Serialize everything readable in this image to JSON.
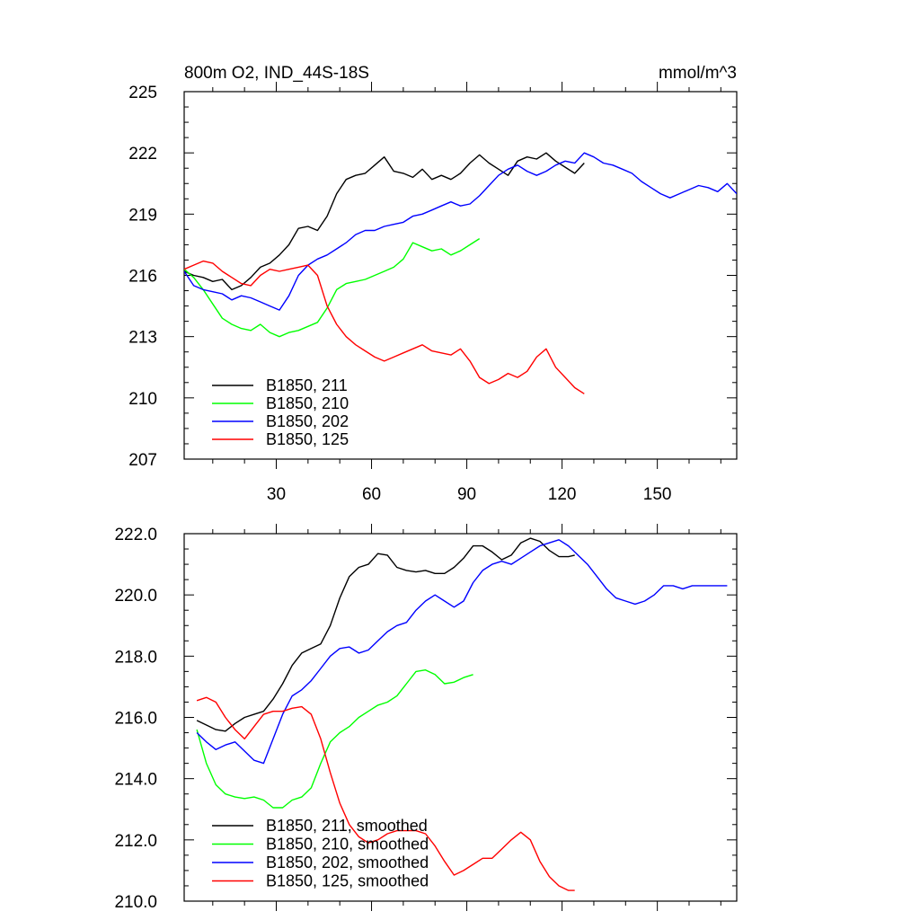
{
  "chart_data": [
    {
      "type": "line",
      "title_left": "800m O2, IND_44S-18S",
      "title_right": "mmol/m^3",
      "xlim": [
        1,
        175
      ],
      "ylim": [
        207,
        225
      ],
      "x_ticks": [
        30,
        60,
        90,
        120,
        150
      ],
      "y_ticks": [
        207,
        210,
        213,
        216,
        219,
        222,
        225
      ],
      "y_tick_labels": [
        "207",
        "210",
        "213",
        "216",
        "219",
        "222",
        "225"
      ],
      "legend": "bottom-left",
      "series": [
        {
          "name": "B1850, 211",
          "color": "#000000",
          "x": [
            1,
            4,
            7,
            10,
            13,
            16,
            19,
            22,
            25,
            28,
            31,
            34,
            37,
            40,
            43,
            46,
            49,
            52,
            55,
            58,
            61,
            64,
            67,
            70,
            73,
            76,
            79,
            82,
            85,
            88,
            91,
            94,
            97,
            100,
            103,
            106,
            109,
            112,
            115,
            118,
            121,
            124,
            127
          ],
          "y": [
            216.2,
            216.0,
            215.9,
            215.7,
            215.8,
            215.3,
            215.5,
            215.9,
            216.4,
            216.6,
            217.0,
            217.5,
            218.3,
            218.4,
            218.2,
            218.9,
            220.0,
            220.7,
            220.9,
            221.0,
            221.4,
            221.8,
            221.1,
            221.0,
            220.8,
            221.2,
            220.7,
            220.9,
            220.7,
            221.0,
            221.5,
            221.9,
            221.5,
            221.2,
            220.9,
            221.6,
            221.8,
            221.7,
            222.0,
            221.6,
            221.3,
            221.0,
            221.5
          ]
        },
        {
          "name": "B1850, 210",
          "color": "#00ff00",
          "x": [
            1,
            4,
            7,
            10,
            13,
            16,
            19,
            22,
            25,
            28,
            31,
            34,
            37,
            40,
            43,
            46,
            49,
            52,
            55,
            58,
            61,
            64,
            67,
            70,
            73,
            76,
            79,
            82,
            85,
            88,
            91,
            94
          ],
          "y": [
            216.3,
            215.9,
            215.3,
            214.6,
            213.9,
            213.6,
            213.4,
            213.3,
            213.6,
            213.2,
            213.0,
            213.2,
            213.3,
            213.5,
            213.7,
            214.4,
            215.3,
            215.6,
            215.7,
            215.8,
            216.0,
            216.2,
            216.4,
            216.8,
            217.6,
            217.4,
            217.2,
            217.3,
            217.0,
            217.2,
            217.5,
            217.8
          ]
        },
        {
          "name": "B1850, 202",
          "color": "#0000ff",
          "x": [
            1,
            4,
            7,
            10,
            13,
            16,
            19,
            22,
            25,
            28,
            31,
            34,
            37,
            40,
            43,
            46,
            49,
            52,
            55,
            58,
            61,
            64,
            67,
            70,
            73,
            76,
            79,
            82,
            85,
            88,
            91,
            94,
            97,
            100,
            103,
            106,
            109,
            112,
            115,
            118,
            121,
            124,
            127,
            130,
            133,
            136,
            139,
            142,
            145,
            148,
            151,
            154,
            157,
            160,
            163,
            166,
            169,
            172,
            175
          ],
          "y": [
            216.2,
            215.5,
            215.3,
            215.2,
            215.1,
            214.8,
            215.0,
            214.9,
            214.7,
            214.5,
            214.3,
            215.0,
            216.0,
            216.5,
            216.8,
            217.0,
            217.3,
            217.6,
            218.0,
            218.2,
            218.2,
            218.4,
            218.5,
            218.6,
            218.9,
            219.0,
            219.2,
            219.4,
            219.6,
            219.4,
            219.5,
            219.9,
            220.4,
            220.9,
            221.2,
            221.4,
            221.1,
            220.9,
            221.1,
            221.4,
            221.6,
            221.5,
            222.0,
            221.8,
            221.5,
            221.4,
            221.2,
            221.0,
            220.6,
            220.3,
            220.0,
            219.8,
            220.0,
            220.2,
            220.4,
            220.3,
            220.1,
            220.5,
            220.0
          ]
        },
        {
          "name": "B1850, 125",
          "color": "#ff0000",
          "x": [
            1,
            4,
            7,
            10,
            13,
            16,
            19,
            22,
            25,
            28,
            31,
            34,
            37,
            40,
            43,
            46,
            49,
            52,
            55,
            58,
            61,
            64,
            67,
            70,
            73,
            76,
            79,
            82,
            85,
            88,
            91,
            94,
            97,
            100,
            103,
            106,
            109,
            112,
            115,
            118,
            121,
            124,
            127
          ],
          "y": [
            216.3,
            216.5,
            216.7,
            216.6,
            216.2,
            215.9,
            215.6,
            215.5,
            216.0,
            216.3,
            216.2,
            216.3,
            216.4,
            216.5,
            216.0,
            214.5,
            213.6,
            213.0,
            212.6,
            212.3,
            212.0,
            211.8,
            212.0,
            212.2,
            212.4,
            212.6,
            212.3,
            212.2,
            212.1,
            212.4,
            211.8,
            211.0,
            210.7,
            210.9,
            211.2,
            211.0,
            211.3,
            212.0,
            212.4,
            211.5,
            211.0,
            210.5,
            210.2
          ]
        }
      ]
    },
    {
      "type": "line",
      "xlim": [
        1,
        175
      ],
      "ylim": [
        210,
        222
      ],
      "x_ticks": [
        30,
        60,
        90,
        120,
        150
      ],
      "y_ticks": [
        210,
        212,
        214,
        216,
        218,
        220,
        222
      ],
      "y_tick_labels": [
        "210.0",
        "212.0",
        "214.0",
        "216.0",
        "218.0",
        "220.0",
        "222.0"
      ],
      "legend": "bottom-left",
      "series": [
        {
          "name": "B1850, 211, smoothed",
          "color": "#000000",
          "x": [
            5,
            8,
            11,
            14,
            17,
            20,
            23,
            26,
            29,
            32,
            35,
            38,
            41,
            44,
            47,
            50,
            53,
            56,
            59,
            62,
            65,
            68,
            71,
            74,
            77,
            80,
            83,
            86,
            89,
            92,
            95,
            98,
            101,
            104,
            107,
            110,
            113,
            116,
            119,
            122,
            124
          ],
          "y": [
            215.9,
            215.75,
            215.6,
            215.55,
            215.8,
            216.0,
            216.1,
            216.2,
            216.6,
            217.1,
            217.7,
            218.1,
            218.25,
            218.4,
            219.0,
            219.9,
            220.6,
            220.9,
            221.0,
            221.35,
            221.3,
            220.9,
            220.8,
            220.75,
            220.8,
            220.7,
            220.7,
            220.9,
            221.2,
            221.6,
            221.6,
            221.4,
            221.15,
            221.3,
            221.7,
            221.85,
            221.75,
            221.45,
            221.25,
            221.25,
            221.3
          ]
        },
        {
          "name": "B1850, 210, smoothed",
          "color": "#00ff00",
          "x": [
            5,
            8,
            11,
            14,
            17,
            20,
            23,
            26,
            29,
            32,
            35,
            38,
            41,
            44,
            47,
            50,
            53,
            56,
            59,
            62,
            65,
            68,
            71,
            74,
            77,
            80,
            83,
            86,
            89,
            92
          ],
          "y": [
            215.6,
            214.5,
            213.8,
            213.5,
            213.4,
            213.35,
            213.4,
            213.3,
            213.05,
            213.05,
            213.3,
            213.4,
            213.7,
            214.5,
            215.2,
            215.5,
            215.7,
            216.0,
            216.2,
            216.4,
            216.5,
            216.7,
            217.1,
            217.5,
            217.55,
            217.4,
            217.1,
            217.15,
            217.3,
            217.4
          ]
        },
        {
          "name": "B1850, 202, smoothed",
          "color": "#0000ff",
          "x": [
            5,
            8,
            11,
            14,
            17,
            20,
            23,
            26,
            29,
            32,
            35,
            38,
            41,
            44,
            47,
            50,
            53,
            56,
            59,
            62,
            65,
            68,
            71,
            74,
            77,
            80,
            83,
            86,
            89,
            92,
            95,
            98,
            101,
            104,
            107,
            110,
            113,
            116,
            119,
            122,
            125,
            128,
            131,
            134,
            137,
            140,
            143,
            146,
            149,
            152,
            155,
            158,
            161,
            164,
            167,
            170,
            172
          ],
          "y": [
            215.5,
            215.2,
            214.95,
            215.1,
            215.2,
            214.9,
            214.6,
            214.5,
            215.3,
            216.1,
            216.7,
            216.9,
            217.2,
            217.6,
            218.0,
            218.25,
            218.3,
            218.1,
            218.2,
            218.5,
            218.8,
            219.0,
            219.1,
            219.5,
            219.8,
            220.0,
            219.8,
            219.6,
            219.8,
            220.4,
            220.8,
            221.0,
            221.1,
            221.0,
            221.2,
            221.4,
            221.6,
            221.7,
            221.8,
            221.6,
            221.3,
            221.0,
            220.6,
            220.2,
            219.9,
            219.8,
            219.7,
            219.8,
            220.0,
            220.3,
            220.3,
            220.2,
            220.3,
            220.3,
            220.3,
            220.3,
            220.3
          ]
        },
        {
          "name": "B1850, 125, smoothed",
          "color": "#ff0000",
          "x": [
            5,
            8,
            11,
            14,
            17,
            20,
            23,
            26,
            29,
            32,
            35,
            38,
            41,
            44,
            47,
            50,
            53,
            56,
            59,
            62,
            65,
            68,
            71,
            74,
            77,
            80,
            83,
            86,
            89,
            92,
            95,
            98,
            101,
            104,
            107,
            110,
            113,
            116,
            119,
            122,
            124
          ],
          "y": [
            216.55,
            216.65,
            216.5,
            216.0,
            215.6,
            215.3,
            215.7,
            216.1,
            216.2,
            216.2,
            216.3,
            216.35,
            216.1,
            215.3,
            214.2,
            213.2,
            212.5,
            212.1,
            211.9,
            212.0,
            212.2,
            212.3,
            212.3,
            212.3,
            212.2,
            211.8,
            211.3,
            210.85,
            211.0,
            211.2,
            211.4,
            211.4,
            211.7,
            212.0,
            212.25,
            212.0,
            211.3,
            210.8,
            210.5,
            210.35,
            210.35
          ]
        }
      ]
    }
  ]
}
